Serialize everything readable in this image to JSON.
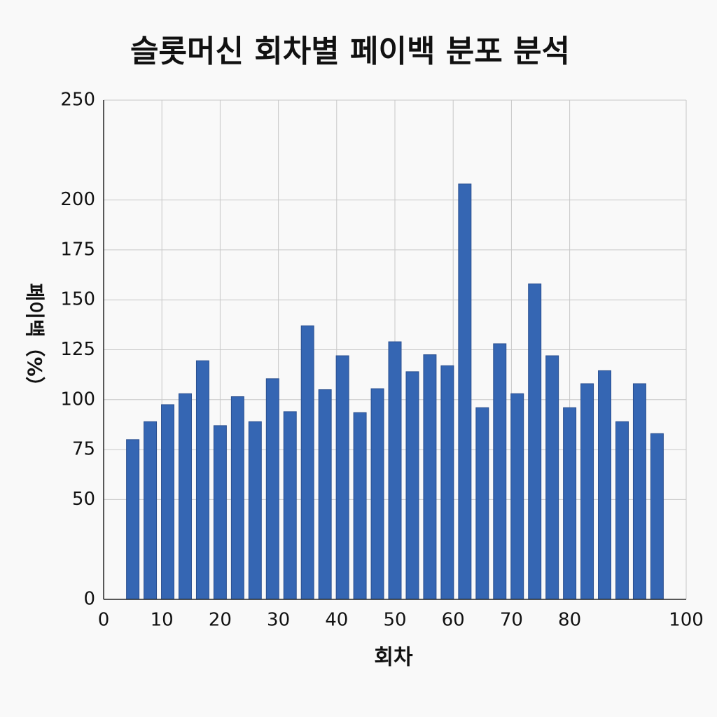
{
  "chart_data": {
    "type": "bar",
    "title": "슬롯머신 회차별 페이백 분포 분석",
    "xlabel": "회차",
    "ylabel": "페이백（%）",
    "x": [
      5,
      8,
      11,
      14,
      17,
      20,
      23,
      26,
      29,
      32,
      35,
      38,
      41,
      44,
      47,
      50,
      53,
      56,
      59,
      62,
      65,
      68,
      71,
      74,
      77,
      80,
      83,
      86,
      89,
      92,
      95
    ],
    "values": [
      80,
      89,
      97.5,
      103,
      119.5,
      87,
      101.5,
      89,
      110.5,
      94,
      137,
      105,
      122,
      93.5,
      105.5,
      129,
      114,
      122.5,
      117,
      208,
      96,
      128,
      103,
      158,
      122,
      96,
      108,
      114.5,
      89,
      108,
      83
    ],
    "color": "#3566b3",
    "xlim": [
      0,
      100
    ],
    "xticks": [
      0,
      10,
      20,
      30,
      40,
      50,
      60,
      70,
      80,
      100
    ],
    "ylim": [
      0,
      250
    ],
    "yticks": [
      0,
      50,
      75,
      100,
      125,
      150,
      175,
      200,
      250
    ],
    "grid": true
  }
}
